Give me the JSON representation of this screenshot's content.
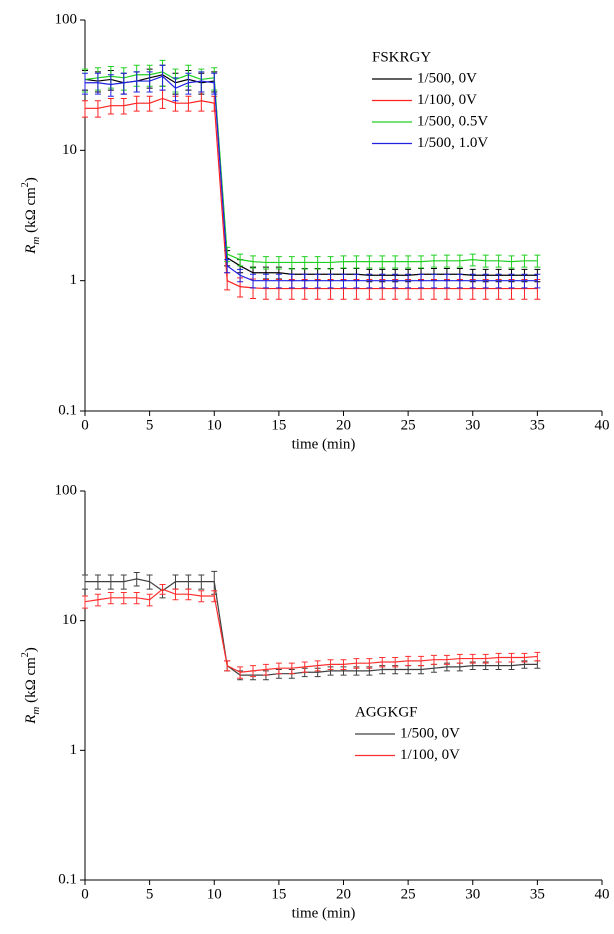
{
  "chart_data": [
    {
      "type": "line",
      "xlabel": "time (min)",
      "ylabel": [
        "R",
        "m",
        " (kΩ cm",
        "2",
        ")"
      ],
      "xlim": [
        0,
        40
      ],
      "ylim": [
        0.1,
        100
      ],
      "log_y": true,
      "xticks": [
        0,
        5,
        10,
        15,
        20,
        25,
        30,
        35,
        40
      ],
      "yticks": [
        0.1,
        1,
        10,
        100
      ],
      "legend_title": "FSKRGY",
      "x": [
        0,
        1,
        2,
        3,
        4,
        5,
        6,
        7,
        8,
        9,
        10,
        11,
        12,
        13,
        14,
        15,
        16,
        17,
        18,
        19,
        20,
        21,
        22,
        23,
        24,
        25,
        26,
        27,
        28,
        29,
        30,
        31,
        32,
        33,
        34,
        35
      ],
      "series": [
        {
          "name": "1/500, 0V",
          "color": "#000000",
          "values": [
            35,
            34,
            35,
            33,
            34,
            36,
            38,
            33,
            35,
            33,
            34,
            1.5,
            1.3,
            1.15,
            1.15,
            1.15,
            1.12,
            1.12,
            1.12,
            1.12,
            1.12,
            1.12,
            1.1,
            1.1,
            1.1,
            1.1,
            1.12,
            1.12,
            1.12,
            1.12,
            1.1,
            1.1,
            1.1,
            1.1,
            1.1,
            1.1
          ],
          "errors": [
            6,
            6,
            6,
            6,
            6,
            6,
            7,
            6,
            6,
            6,
            6,
            0.2,
            0.15,
            0.12,
            0.12,
            0.12,
            0.12,
            0.12,
            0.12,
            0.12,
            0.12,
            0.12,
            0.12,
            0.12,
            0.12,
            0.12,
            0.12,
            0.12,
            0.12,
            0.12,
            0.12,
            0.12,
            0.12,
            0.12,
            0.12,
            0.12
          ]
        },
        {
          "name": "1/100, 0V",
          "color": "#ff2020",
          "values": [
            21,
            21,
            22,
            22,
            23,
            23,
            25,
            23,
            23,
            24,
            23,
            1.0,
            0.9,
            0.88,
            0.87,
            0.87,
            0.87,
            0.87,
            0.87,
            0.87,
            0.87,
            0.87,
            0.87,
            0.87,
            0.87,
            0.87,
            0.87,
            0.87,
            0.87,
            0.87,
            0.87,
            0.87,
            0.87,
            0.87,
            0.87,
            0.87
          ],
          "errors": [
            3,
            3,
            3,
            3,
            3,
            3,
            4,
            3,
            3,
            4,
            3,
            0.15,
            0.15,
            0.15,
            0.15,
            0.15,
            0.15,
            0.15,
            0.15,
            0.15,
            0.15,
            0.15,
            0.15,
            0.15,
            0.15,
            0.15,
            0.15,
            0.15,
            0.15,
            0.15,
            0.15,
            0.15,
            0.15,
            0.15,
            0.15,
            0.15
          ]
        },
        {
          "name": "1/500, 0.5V",
          "color": "#20d020",
          "values": [
            35,
            36,
            37,
            36,
            38,
            38,
            40,
            35,
            38,
            35,
            36,
            1.6,
            1.45,
            1.4,
            1.38,
            1.38,
            1.38,
            1.38,
            1.38,
            1.38,
            1.4,
            1.4,
            1.4,
            1.4,
            1.4,
            1.4,
            1.4,
            1.42,
            1.42,
            1.42,
            1.45,
            1.42,
            1.42,
            1.4,
            1.42,
            1.42
          ],
          "errors": [
            7,
            7,
            7,
            7,
            7,
            7,
            9,
            7,
            7,
            7,
            7,
            0.2,
            0.15,
            0.15,
            0.15,
            0.15,
            0.15,
            0.15,
            0.15,
            0.15,
            0.15,
            0.15,
            0.15,
            0.15,
            0.15,
            0.15,
            0.15,
            0.15,
            0.15,
            0.15,
            0.15,
            0.15,
            0.15,
            0.15,
            0.15,
            0.15
          ]
        },
        {
          "name": "1/500, 1.0V",
          "color": "#2020e0",
          "values": [
            33,
            33,
            32,
            33,
            34,
            34,
            37,
            30,
            33,
            34,
            33,
            1.3,
            1.1,
            1.0,
            1.0,
            1.0,
            1.0,
            1.0,
            1.0,
            1.0,
            1.0,
            1.0,
            1.0,
            1.0,
            1.0,
            1.0,
            1.0,
            1.0,
            1.0,
            1.0,
            1.0,
            1.0,
            1.0,
            1.0,
            1.0,
            1.0
          ],
          "errors": [
            6,
            6,
            6,
            6,
            6,
            6,
            8,
            6,
            6,
            6,
            6,
            0.15,
            0.12,
            0.12,
            0.12,
            0.12,
            0.12,
            0.12,
            0.12,
            0.12,
            0.12,
            0.12,
            0.12,
            0.12,
            0.12,
            0.12,
            0.12,
            0.12,
            0.12,
            0.12,
            0.12,
            0.12,
            0.12,
            0.12,
            0.12,
            0.12
          ]
        }
      ]
    },
    {
      "type": "line",
      "xlabel": "time (min)",
      "ylabel": [
        "R",
        "m",
        " (kΩ cm",
        "2",
        ")"
      ],
      "xlim": [
        0,
        40
      ],
      "ylim": [
        0.1,
        100
      ],
      "log_y": true,
      "xticks": [
        0,
        5,
        10,
        15,
        20,
        25,
        30,
        35,
        40
      ],
      "yticks": [
        0.1,
        1,
        10,
        100
      ],
      "legend_title": "AGGKGF",
      "x": [
        0,
        1,
        2,
        3,
        4,
        5,
        6,
        7,
        8,
        9,
        10,
        11,
        12,
        13,
        14,
        15,
        16,
        17,
        18,
        19,
        20,
        21,
        22,
        23,
        24,
        25,
        26,
        27,
        28,
        29,
        30,
        31,
        32,
        33,
        34,
        35
      ],
      "series": [
        {
          "name": "1/500, 0V",
          "color": "#404040",
          "values": [
            20,
            20,
            20,
            20,
            21,
            20,
            17,
            20,
            20,
            20,
            20,
            4.5,
            3.8,
            3.8,
            3.8,
            3.9,
            3.9,
            4.0,
            4.0,
            4.1,
            4.1,
            4.1,
            4.1,
            4.2,
            4.2,
            4.2,
            4.2,
            4.3,
            4.4,
            4.4,
            4.5,
            4.5,
            4.5,
            4.5,
            4.6,
            4.6
          ],
          "errors": [
            2.5,
            2.5,
            2.5,
            2.5,
            2.5,
            2.5,
            2,
            2.5,
            2.5,
            2.5,
            4,
            0.4,
            0.3,
            0.3,
            0.3,
            0.3,
            0.3,
            0.3,
            0.3,
            0.3,
            0.3,
            0.3,
            0.3,
            0.3,
            0.3,
            0.3,
            0.3,
            0.3,
            0.3,
            0.3,
            0.3,
            0.3,
            0.3,
            0.3,
            0.3,
            0.3
          ]
        },
        {
          "name": "1/100, 0V",
          "color": "#ff3030",
          "values": [
            14,
            14.5,
            15,
            15,
            15,
            14.5,
            17.5,
            16,
            16,
            15.5,
            15.5,
            4.5,
            4.0,
            4.1,
            4.2,
            4.3,
            4.3,
            4.4,
            4.5,
            4.6,
            4.6,
            4.7,
            4.7,
            4.8,
            4.8,
            4.9,
            4.9,
            5.0,
            5.0,
            5.1,
            5.1,
            5.1,
            5.2,
            5.2,
            5.2,
            5.3
          ],
          "errors": [
            1.5,
            1.5,
            1.5,
            1.5,
            1.5,
            1.5,
            1.5,
            1.5,
            1.5,
            1.5,
            1.5,
            0.4,
            0.4,
            0.4,
            0.4,
            0.4,
            0.4,
            0.4,
            0.4,
            0.4,
            0.4,
            0.4,
            0.4,
            0.4,
            0.4,
            0.4,
            0.4,
            0.4,
            0.4,
            0.4,
            0.4,
            0.4,
            0.4,
            0.4,
            0.4,
            0.4
          ]
        }
      ]
    }
  ]
}
